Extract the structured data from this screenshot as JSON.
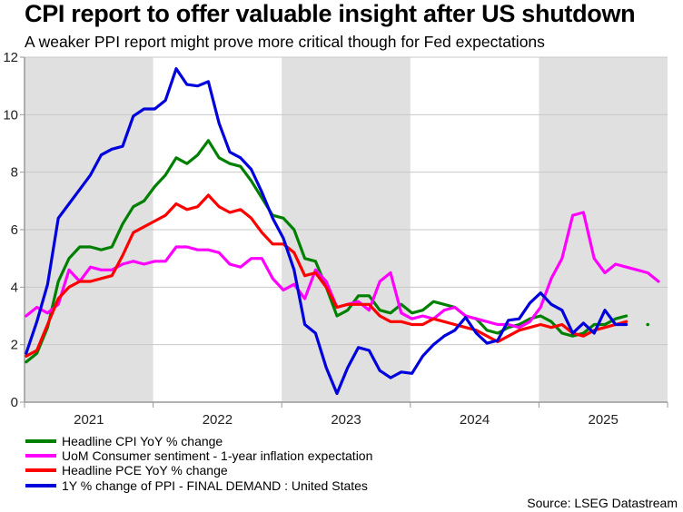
{
  "chart_data": {
    "type": "line",
    "title": "CPI report to offer valuable insight after US shutdown",
    "subtitle": "A weaker PPI report might prove more critical though for Fed expectations",
    "xlabel": "",
    "ylabel": "",
    "ylim": [
      0,
      12
    ],
    "yticks": [
      "0",
      "2",
      "4",
      "6",
      "8",
      "10",
      "12"
    ],
    "ytick_values": [
      0,
      2,
      4,
      6,
      8,
      10,
      12
    ],
    "xcategories": [
      "2021",
      "2022",
      "2023",
      "2024",
      "2025"
    ],
    "shaded_years": [
      "2021",
      "2023",
      "2025"
    ],
    "grid": true,
    "legend_position": "bottom-left",
    "x": [
      "2021-01",
      "2021-02",
      "2021-03",
      "2021-04",
      "2021-05",
      "2021-06",
      "2021-07",
      "2021-08",
      "2021-09",
      "2021-10",
      "2021-11",
      "2021-12",
      "2022-01",
      "2022-02",
      "2022-03",
      "2022-04",
      "2022-05",
      "2022-06",
      "2022-07",
      "2022-08",
      "2022-09",
      "2022-10",
      "2022-11",
      "2022-12",
      "2023-01",
      "2023-02",
      "2023-03",
      "2023-04",
      "2023-05",
      "2023-06",
      "2023-07",
      "2023-08",
      "2023-09",
      "2023-10",
      "2023-11",
      "2023-12",
      "2024-01",
      "2024-02",
      "2024-03",
      "2024-04",
      "2024-05",
      "2024-06",
      "2024-07",
      "2024-08",
      "2024-09",
      "2024-10",
      "2024-11",
      "2024-12",
      "2025-01",
      "2025-02",
      "2025-03",
      "2025-04",
      "2025-05",
      "2025-06",
      "2025-07",
      "2025-08",
      "2025-09",
      "2025-10",
      "2025-11",
      "2025-12"
    ],
    "series": [
      {
        "name": "Headline CPI YoY % change",
        "color": "#008000",
        "values": [
          1.4,
          1.7,
          2.6,
          4.2,
          5.0,
          5.4,
          5.4,
          5.3,
          5.4,
          6.2,
          6.8,
          7.0,
          7.5,
          7.9,
          8.5,
          8.3,
          8.6,
          9.1,
          8.5,
          8.3,
          8.2,
          7.7,
          7.1,
          6.5,
          6.4,
          6.0,
          5.0,
          4.9,
          4.0,
          3.0,
          3.2,
          3.7,
          3.7,
          3.2,
          3.1,
          3.4,
          3.1,
          3.2,
          3.5,
          3.4,
          3.3,
          3.0,
          2.9,
          2.5,
          2.4,
          2.6,
          2.7,
          2.9,
          3.0,
          2.8,
          2.4,
          2.3,
          2.4,
          2.7,
          2.7,
          2.9,
          3.0,
          null,
          2.7,
          null
        ]
      },
      {
        "name": "UoM Consumer sentiment - 1-year inflation expectation",
        "color": "#ff00ff",
        "values": [
          3.0,
          3.3,
          3.1,
          3.4,
          4.6,
          4.2,
          4.7,
          4.6,
          4.6,
          4.8,
          4.9,
          4.8,
          4.9,
          4.9,
          5.4,
          5.4,
          5.3,
          5.3,
          5.2,
          4.8,
          4.7,
          5.0,
          5.0,
          4.3,
          3.9,
          4.1,
          3.6,
          4.6,
          4.2,
          3.3,
          3.4,
          3.5,
          3.2,
          4.2,
          4.5,
          3.1,
          2.9,
          3.0,
          2.9,
          3.2,
          3.3,
          3.0,
          2.9,
          2.8,
          2.7,
          2.7,
          2.6,
          2.8,
          3.3,
          4.3,
          5.0,
          6.5,
          6.6,
          5.0,
          4.5,
          4.8,
          4.7,
          4.6,
          4.5,
          4.2
        ]
      },
      {
        "name": "Headline PCE YoY % change",
        "color": "#ff0000",
        "values": [
          1.6,
          1.8,
          2.7,
          3.6,
          4.0,
          4.2,
          4.2,
          4.3,
          4.4,
          5.1,
          5.9,
          6.1,
          6.3,
          6.5,
          6.9,
          6.7,
          6.8,
          7.2,
          6.8,
          6.6,
          6.7,
          6.4,
          5.9,
          5.5,
          5.5,
          5.2,
          4.4,
          4.5,
          4.0,
          3.3,
          3.4,
          3.4,
          3.4,
          3.0,
          2.8,
          2.8,
          2.7,
          2.7,
          2.9,
          2.8,
          2.7,
          2.6,
          2.5,
          2.3,
          2.1,
          2.3,
          2.5,
          2.6,
          2.7,
          2.6,
          2.7,
          2.4,
          2.3,
          2.5,
          2.6,
          2.7,
          2.8,
          null,
          null,
          null
        ]
      },
      {
        "name": "1Y % change of PPI - FINAL DEMAND : United States",
        "color": "#0000dd",
        "values": [
          1.7,
          2.8,
          4.1,
          6.4,
          6.9,
          7.4,
          7.9,
          8.6,
          8.8,
          8.9,
          9.95,
          10.2,
          10.2,
          10.5,
          11.6,
          11.05,
          11.0,
          11.15,
          9.7,
          8.7,
          8.5,
          8.1,
          7.3,
          6.4,
          5.7,
          4.6,
          2.7,
          2.4,
          1.2,
          0.3,
          1.2,
          1.9,
          1.8,
          1.1,
          0.85,
          1.05,
          1.0,
          1.6,
          2.0,
          2.3,
          2.5,
          2.95,
          2.4,
          2.05,
          2.15,
          2.85,
          2.9,
          3.45,
          3.8,
          3.4,
          3.2,
          2.4,
          2.75,
          2.4,
          3.2,
          2.7,
          2.7,
          null,
          null,
          null
        ]
      }
    ],
    "legend": [
      {
        "label": "Headline CPI YoY % change",
        "color": "#008000"
      },
      {
        "label": "UoM Consumer sentiment - 1-year inflation expectation",
        "color": "#ff00ff"
      },
      {
        "label": "Headline PCE YoY % change",
        "color": "#ff0000"
      },
      {
        "label": "1Y % change of PPI - FINAL DEMAND : United States",
        "color": "#0000dd"
      }
    ],
    "source": "Source: LSEG Datastream"
  }
}
